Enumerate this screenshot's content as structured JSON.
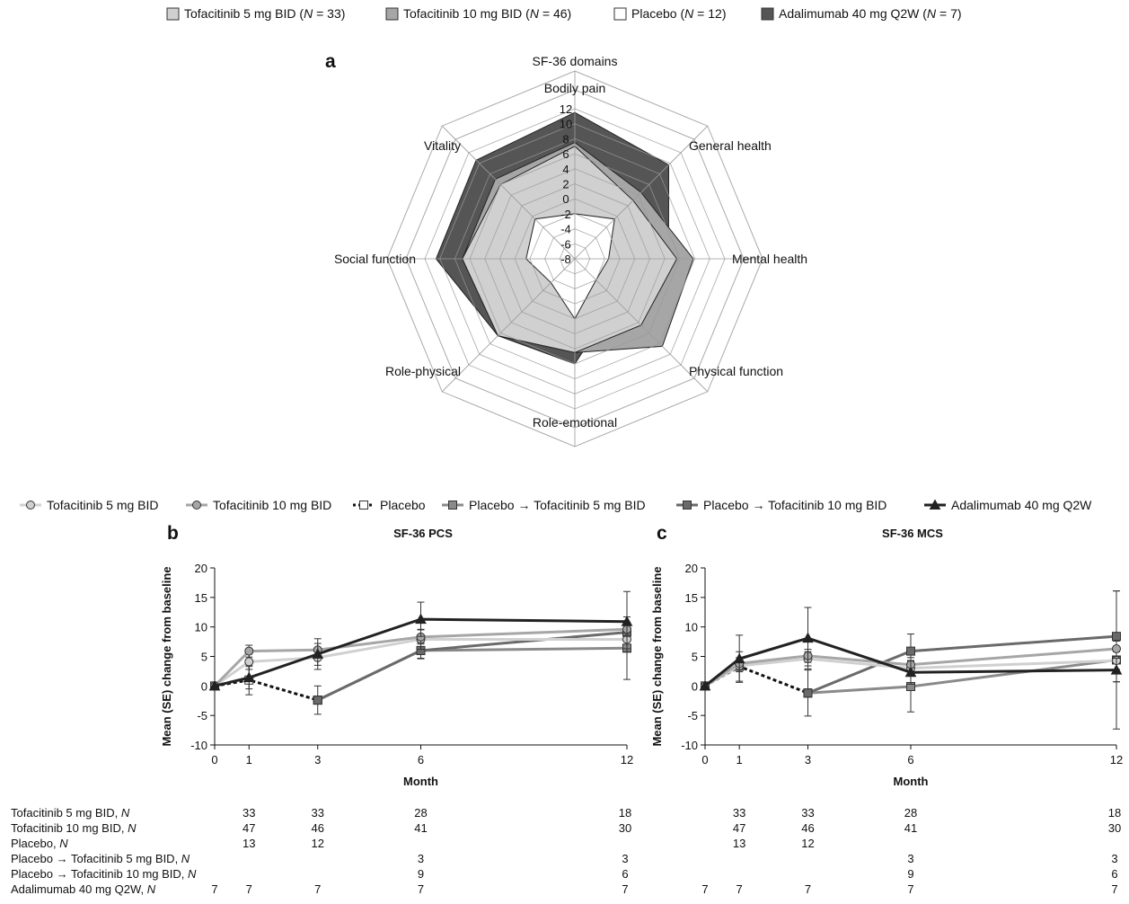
{
  "colors": {
    "tofa5": "#d0d0d0",
    "tofa10": "#a6a6a6",
    "placebo": "#ffffff",
    "ada": "#555555",
    "pbo_tofa5": "#8a8a8a",
    "pbo_tofa10": "#6a6a6a",
    "ada_line": "#222222"
  },
  "top_legend": [
    {
      "key": "tofa5",
      "name": "Tofacitinib 5 mg BID",
      "n": "33"
    },
    {
      "key": "tofa10",
      "name": "Tofacitinib 10 mg BID",
      "n": "46"
    },
    {
      "key": "placebo",
      "name": "Placebo",
      "n": "12"
    },
    {
      "key": "ada",
      "name": "Adalimumab 40 mg Q2W",
      "n": "7"
    }
  ],
  "line_legend": [
    {
      "key": "tofa5",
      "label": "Tofacitinib 5 mg BID",
      "marker": "circle",
      "dash": false
    },
    {
      "key": "tofa10",
      "label": "Tofacitinib 10 mg BID",
      "marker": "circle",
      "dash": false
    },
    {
      "key": "placebo",
      "label": "Placebo",
      "marker": "square",
      "dash": true
    },
    {
      "key": "pbo_tofa5",
      "label": "Placebo → Tofacitinib 5 mg BID",
      "marker": "square",
      "dash": false
    },
    {
      "key": "pbo_tofa10",
      "label": "Placebo → Tofacitinib 10 mg BID",
      "marker": "square",
      "dash": false
    },
    {
      "key": "ada_line",
      "label": "Adalimumab 40 mg Q2W",
      "marker": "triangle",
      "dash": false
    }
  ],
  "chart_data": [
    {
      "panel": "a",
      "type": "radar",
      "title": "SF-36 domains",
      "axes": [
        "Bodily pain",
        "General health",
        "Mental health",
        "Physical function",
        "Role-emotional",
        "Role-physical",
        "Social function",
        "Vitality"
      ],
      "rlim": [
        -8,
        12
      ],
      "r_ticks": [
        12,
        10,
        8,
        6,
        4,
        2,
        0,
        -2,
        -4,
        -6,
        -8
      ],
      "series": [
        {
          "key": "ada",
          "values": [
            11.5,
            9.7,
            4.5,
            -0.2,
            6.0,
            6.5,
            10.5,
            10.6
          ]
        },
        {
          "key": "tofa10",
          "values": [
            7.5,
            4.5,
            7.8,
            8.5,
            4.5,
            6.5,
            7.0,
            7.0
          ]
        },
        {
          "key": "tofa5",
          "values": [
            7.0,
            3.0,
            5.6,
            4.5,
            4.5,
            6.5,
            7.0,
            6.0
          ]
        },
        {
          "key": "placebo",
          "values": [
            -2.0,
            -0.5,
            -3.5,
            -4.0,
            0.0,
            -3.5,
            -1.5,
            -0.5
          ]
        }
      ]
    },
    {
      "panel": "b",
      "type": "line",
      "title": "SF-36 PCS",
      "xlabel": "Month",
      "ylabel": "Mean (SE) change from baseline",
      "ylim": [
        -10,
        20
      ],
      "xlim": [
        0,
        12
      ],
      "x_ticks": [
        0,
        1,
        3,
        6,
        12
      ],
      "y_ticks": [
        20,
        15,
        10,
        5,
        0,
        -5,
        -10
      ],
      "series": [
        {
          "key": "tofa5",
          "x": [
            0,
            1,
            3,
            6,
            12
          ],
          "y": [
            0,
            4.1,
            4.8,
            7.9,
            7.9
          ],
          "err": [
            0,
            1.3,
            1.3,
            1.7,
            1.6
          ]
        },
        {
          "key": "tofa10",
          "x": [
            0,
            1,
            3,
            6,
            12
          ],
          "y": [
            0,
            5.9,
            6.1,
            8.3,
            9.6
          ],
          "err": [
            0,
            1.0,
            1.1,
            1.2,
            1.2
          ]
        },
        {
          "key": "placebo",
          "x": [
            0,
            1,
            3
          ],
          "y": [
            0,
            1.0,
            -2.4
          ],
          "err": [
            0,
            2.5,
            2.4
          ]
        },
        {
          "key": "pbo_tofa5",
          "x": [
            3,
            6,
            12
          ],
          "y": [
            -2.4,
            6.0,
            6.4
          ],
          "err": [
            0,
            1.4,
            5.3
          ]
        },
        {
          "key": "pbo_tofa10",
          "x": [
            3,
            6,
            12
          ],
          "y": [
            -2.4,
            6.0,
            9.1
          ],
          "err": [
            0,
            1.3,
            1.3
          ]
        },
        {
          "key": "ada_line",
          "x": [
            0,
            1,
            3,
            6,
            12
          ],
          "y": [
            0,
            1.4,
            5.4,
            11.3,
            10.9
          ],
          "err": [
            0,
            1.9,
            2.6,
            2.9,
            5.1
          ]
        }
      ]
    },
    {
      "panel": "c",
      "type": "line",
      "title": "SF-36 MCS",
      "xlabel": "Month",
      "ylabel": "Mean (SE) change from baseline",
      "ylim": [
        -10,
        20
      ],
      "xlim": [
        0,
        12
      ],
      "x_ticks": [
        0,
        1,
        3,
        6,
        12
      ],
      "y_ticks": [
        20,
        15,
        10,
        5,
        0,
        -5,
        -10
      ],
      "series": [
        {
          "key": "tofa5",
          "x": [
            0,
            1,
            3,
            6,
            12
          ],
          "y": [
            0,
            3.4,
            4.6,
            3.0,
            4.3
          ],
          "err": [
            0,
            1.0,
            1.2,
            1.3,
            1.5
          ]
        },
        {
          "key": "tofa10",
          "x": [
            0,
            1,
            3,
            6,
            12
          ],
          "y": [
            0,
            3.8,
            5.1,
            3.6,
            6.3
          ],
          "err": [
            0,
            1.0,
            1.1,
            1.2,
            1.3
          ]
        },
        {
          "key": "placebo",
          "x": [
            0,
            1,
            3
          ],
          "y": [
            0,
            3.3,
            -1.2
          ],
          "err": [
            0,
            2.5,
            3.9
          ]
        },
        {
          "key": "pbo_tofa5",
          "x": [
            3,
            6,
            12
          ],
          "y": [
            -1.2,
            -0.1,
            4.4
          ],
          "err": [
            0,
            4.3,
            11.7
          ]
        },
        {
          "key": "pbo_tofa10",
          "x": [
            3,
            6,
            12
          ],
          "y": [
            -1.2,
            5.9,
            8.4
          ],
          "err": [
            0,
            2.9,
            7.7
          ]
        },
        {
          "key": "ada_line",
          "x": [
            0,
            1,
            3,
            6,
            12
          ],
          "y": [
            0,
            4.6,
            8.1,
            2.3,
            2.7
          ],
          "err": [
            0,
            4.0,
            5.2,
            2.0,
            2.0
          ]
        }
      ]
    }
  ],
  "n_table": {
    "x": [
      0,
      1,
      3,
      6,
      12
    ],
    "rows": [
      {
        "label": "Tofacitinib 5 mg BID, ",
        "n_label": "N",
        "b": [
          "",
          "33",
          "33",
          "28",
          "18"
        ],
        "c": [
          "",
          "33",
          "33",
          "28",
          "18"
        ]
      },
      {
        "label": "Tofacitinib 10 mg BID, ",
        "n_label": "N",
        "b": [
          "",
          "47",
          "46",
          "41",
          "30"
        ],
        "c": [
          "",
          "47",
          "46",
          "41",
          "30"
        ]
      },
      {
        "label": "Placebo, ",
        "n_label": "N",
        "b": [
          "",
          "13",
          "12",
          "",
          ""
        ],
        "c": [
          "",
          "13",
          "12",
          "",
          ""
        ]
      },
      {
        "label": "Placebo → Tofacitinib 5 mg BID, ",
        "n_label": "N",
        "b": [
          "",
          "",
          "",
          "3",
          "3"
        ],
        "c": [
          "",
          "",
          "",
          "3",
          "3"
        ]
      },
      {
        "label": "Placebo → Tofacitinib 10 mg BID, ",
        "n_label": "N",
        "b": [
          "",
          "",
          "",
          "9",
          "6"
        ],
        "c": [
          "",
          "",
          "",
          "9",
          "6"
        ]
      },
      {
        "label": "Adalimumab 40 mg Q2W, ",
        "n_label": "N",
        "b": [
          "7",
          "7",
          "7",
          "7",
          "7"
        ],
        "c": [
          "7",
          "7",
          "7",
          "7",
          "7"
        ]
      }
    ]
  }
}
